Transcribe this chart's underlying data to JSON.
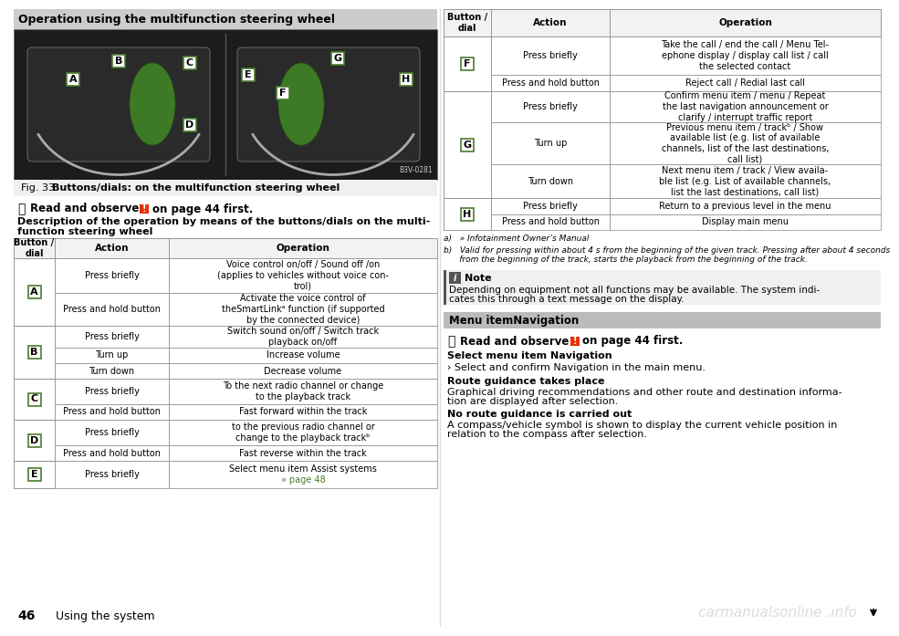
{
  "bg_color": "#ffffff",
  "header_bg": "#c8c8c8",
  "table_border": "#888888",
  "green_color": "#4a7c2f",
  "left_section_title": "Operation using the multifunction steering wheel",
  "fig_caption": "Fig. 33  Buttons/dials: on the multifunction steering wheel",
  "left_table": [
    {
      "button": "A",
      "rows": [
        {
          "action": "Press briefly",
          "operation": "Voice control on/off / Sound off /on\n(applies to vehicles without voice con-\ntrol)"
        },
        {
          "action": "Press and hold button",
          "operation": "Activate the voice control of\ntheSmartLinkᵃ function (if supported\nby the connected device)"
        }
      ]
    },
    {
      "button": "B",
      "rows": [
        {
          "action": "Press briefly",
          "operation": "Switch sound on/off / Switch track\nplayback on/off"
        },
        {
          "action": "Turn up",
          "operation": "Increase volume"
        },
        {
          "action": "Turn down",
          "operation": "Decrease volume"
        }
      ]
    },
    {
      "button": "C",
      "rows": [
        {
          "action": "Press briefly",
          "operation": "To the next radio channel or change\nto the playback track"
        },
        {
          "action": "Press and hold button",
          "operation": "Fast forward within the track"
        }
      ]
    },
    {
      "button": "D",
      "rows": [
        {
          "action": "Press briefly",
          "operation": "to the previous radio channel or\nchange to the playback trackᵇ"
        },
        {
          "action": "Press and hold button",
          "operation": "Fast reverse within the track"
        }
      ]
    },
    {
      "button": "E",
      "rows": [
        {
          "action": "Press briefly",
          "operation": "Select menu item Assist systems\n» page 48"
        }
      ]
    }
  ],
  "right_table": [
    {
      "button": "F",
      "rows": [
        {
          "action": "Press briefly",
          "operation": "Take the call / end the call / Menu Tel-\nephone display / display call list / call\nthe selected contact"
        },
        {
          "action": "Press and hold button",
          "operation": "Reject call / Redial last call"
        }
      ]
    },
    {
      "button": "G",
      "rows": [
        {
          "action": "Press briefly",
          "operation": "Confirm menu item / menu / Repeat\nthe last navigation announcement or\nclarify / interrupt traffic report"
        },
        {
          "action": "Turn up",
          "operation": "Previous menu item / trackᵇ / Show\navailable list (e.g. list of available\nchannels, list of the last destinations,\ncall list)"
        },
        {
          "action": "Turn down",
          "operation": "Next menu item / track / View availa-\nble list (e.g. List of available channels,\nlist the last destinations, call list)"
        }
      ]
    },
    {
      "button": "H",
      "rows": [
        {
          "action": "Press briefly",
          "operation": "Return to a previous level in the menu"
        },
        {
          "action": "Press and hold button",
          "operation": "Display main menu"
        }
      ]
    }
  ],
  "footnote_a": "a)   » Infotainment Owner’s Manual",
  "footnote_b": "b)   Valid for pressing within about 4 s from the beginning of the given track. Pressing after about 4 seconds\n      from the beginning of the track, starts the playback from the beginning of the track.",
  "note_title": "Note",
  "note_text_1": "Depending on equipment not all functions may be available. The system indi-",
  "note_text_2": "cates this through a text message on the display.",
  "menu_item_nav_title": "Menu itemNavigation",
  "select_nav_title": "Select menu item Navigation",
  "select_nav_text": "› Select and confirm Navigation in the main menu.",
  "route_title": "Route guidance takes place",
  "route_text_1": "Graphical driving recommendations and other route and destination informa-",
  "route_text_2": "tion are displayed after selection.",
  "no_route_title": "No route guidance is carried out",
  "no_route_text_1": "A compass/vehicle symbol is shown to display the current vehicle position in",
  "no_route_text_2": "relation to the compass after selection.",
  "page_number": "46",
  "page_label": "Using the system",
  "watermark": "carmanualsonline .info"
}
